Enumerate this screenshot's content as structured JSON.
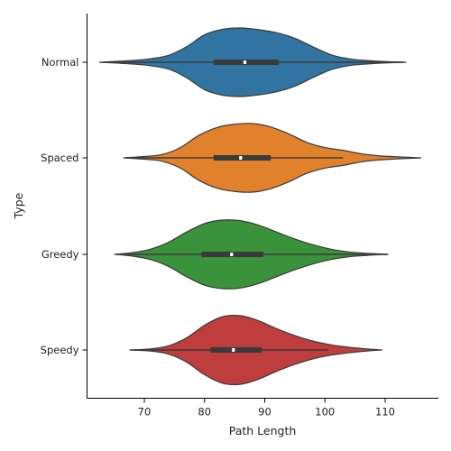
{
  "chart_data": {
    "type": "violin",
    "orientation": "horizontal",
    "xlabel": "Path Length",
    "ylabel": "Type",
    "xlim": [
      60,
      117
    ],
    "xticks": [
      70,
      80,
      90,
      100,
      110
    ],
    "grid": false,
    "categories": [
      "Normal",
      "Spaced",
      "Greedy",
      "Speedy"
    ],
    "series": [
      {
        "name": "Normal",
        "color": "#3274a1",
        "min": 62.5,
        "q1": 81.5,
        "median": 86.7,
        "q3": 92.3,
        "max": 113.5,
        "whisker_low": 63.0,
        "whisker_high": 113.0,
        "density_x": [
          62.5,
          66,
          70,
          74,
          77,
          80,
          83,
          86,
          89,
          92,
          95,
          98,
          101,
          104,
          107,
          110,
          113.5
        ],
        "density_w": [
          0.0,
          0.03,
          0.08,
          0.2,
          0.45,
          0.8,
          0.96,
          1.0,
          0.95,
          0.86,
          0.7,
          0.45,
          0.22,
          0.1,
          0.05,
          0.02,
          0.0
        ]
      },
      {
        "name": "Spaced",
        "color": "#e1812c",
        "min": 66.5,
        "q1": 81.5,
        "median": 86.0,
        "q3": 91.0,
        "max": 116.0,
        "whisker_low": 67.0,
        "whisker_high": 103.0,
        "density_x": [
          66.5,
          70,
          73,
          76,
          79,
          82,
          85,
          88,
          91,
          94,
          97,
          100,
          103,
          106,
          109,
          112,
          116
        ],
        "density_w": [
          0.0,
          0.04,
          0.1,
          0.3,
          0.65,
          0.88,
          0.98,
          1.0,
          0.9,
          0.7,
          0.45,
          0.3,
          0.22,
          0.12,
          0.06,
          0.03,
          0.0
        ]
      },
      {
        "name": "Greedy",
        "color": "#3a923a",
        "min": 65.0,
        "q1": 79.5,
        "median": 84.5,
        "q3": 89.8,
        "max": 110.5,
        "whisker_low": 65.5,
        "whisker_high": 110.5,
        "density_x": [
          65,
          68,
          71,
          74,
          77,
          80,
          83,
          86,
          89,
          92,
          95,
          98,
          101,
          104,
          107,
          110.5
        ],
        "density_w": [
          0.0,
          0.05,
          0.15,
          0.35,
          0.65,
          0.9,
          1.0,
          0.98,
          0.85,
          0.65,
          0.45,
          0.28,
          0.15,
          0.07,
          0.03,
          0.0
        ]
      },
      {
        "name": "Speedy",
        "color": "#c03d3e",
        "min": 67.5,
        "q1": 81.0,
        "median": 84.8,
        "q3": 89.5,
        "max": 109.5,
        "whisker_low": 68.0,
        "whisker_high": 100.5,
        "density_x": [
          67.5,
          71,
          74,
          77,
          80,
          83,
          86,
          89,
          92,
          95,
          98,
          101,
          104,
          107,
          109.5
        ],
        "density_w": [
          0.0,
          0.03,
          0.12,
          0.35,
          0.72,
          0.97,
          1.0,
          0.85,
          0.62,
          0.42,
          0.26,
          0.15,
          0.08,
          0.03,
          0.0
        ]
      }
    ]
  }
}
